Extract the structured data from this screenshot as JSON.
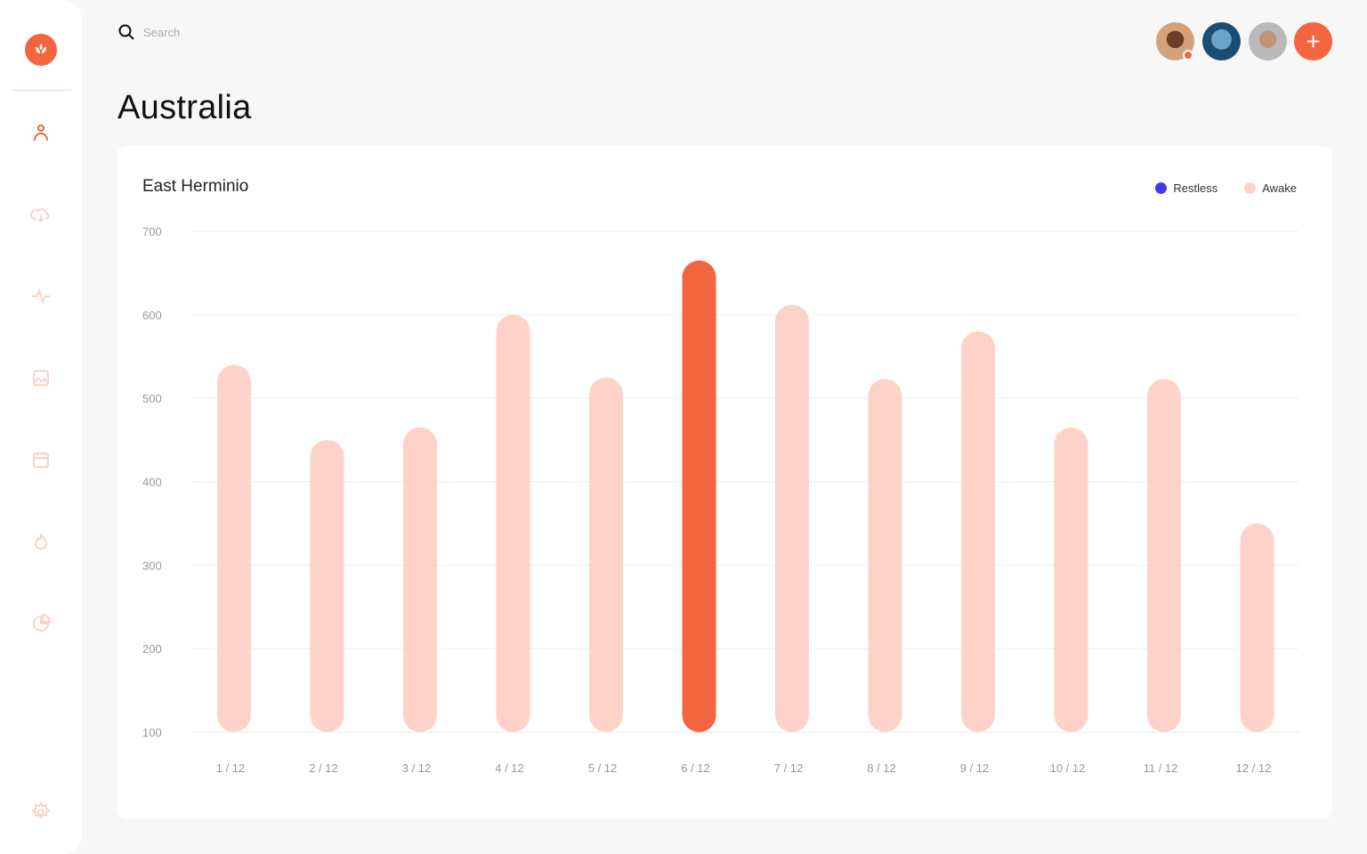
{
  "search": {
    "placeholder": "Search"
  },
  "page_title": "Australia",
  "sidebar": {
    "items": [
      "logo",
      "profile",
      "cloud-download",
      "activity",
      "image",
      "calendar",
      "fire",
      "pie-chart",
      "settings"
    ]
  },
  "header": {
    "avatars": [
      "user-1",
      "user-2",
      "user-3"
    ],
    "add_label": "+"
  },
  "colors": {
    "accent": "#f2653f",
    "awake": "#fdd3c9",
    "restless": "#4338f0"
  },
  "chart_data": {
    "type": "bar",
    "title": "East Herminio",
    "categories": [
      "1 / 12",
      "2 / 12",
      "3 / 12",
      "4 / 12",
      "5 / 12",
      "6 / 12",
      "7 / 12",
      "8 / 12",
      "9 / 12",
      "10 / 12",
      "11 / 12",
      "12 / 12"
    ],
    "series": [
      {
        "name": "Awake",
        "values": [
          540,
          450,
          465,
          600,
          525,
          665,
          612,
          523,
          580,
          465,
          523,
          350
        ]
      }
    ],
    "highlighted_index": 5,
    "legend": [
      "Restless",
      "Awake"
    ],
    "legend_placement": "top-right",
    "ylim": [
      100,
      700
    ],
    "yticks": [
      "700",
      "600",
      "500",
      "400",
      "300",
      "200",
      "100"
    ],
    "grid": true
  }
}
